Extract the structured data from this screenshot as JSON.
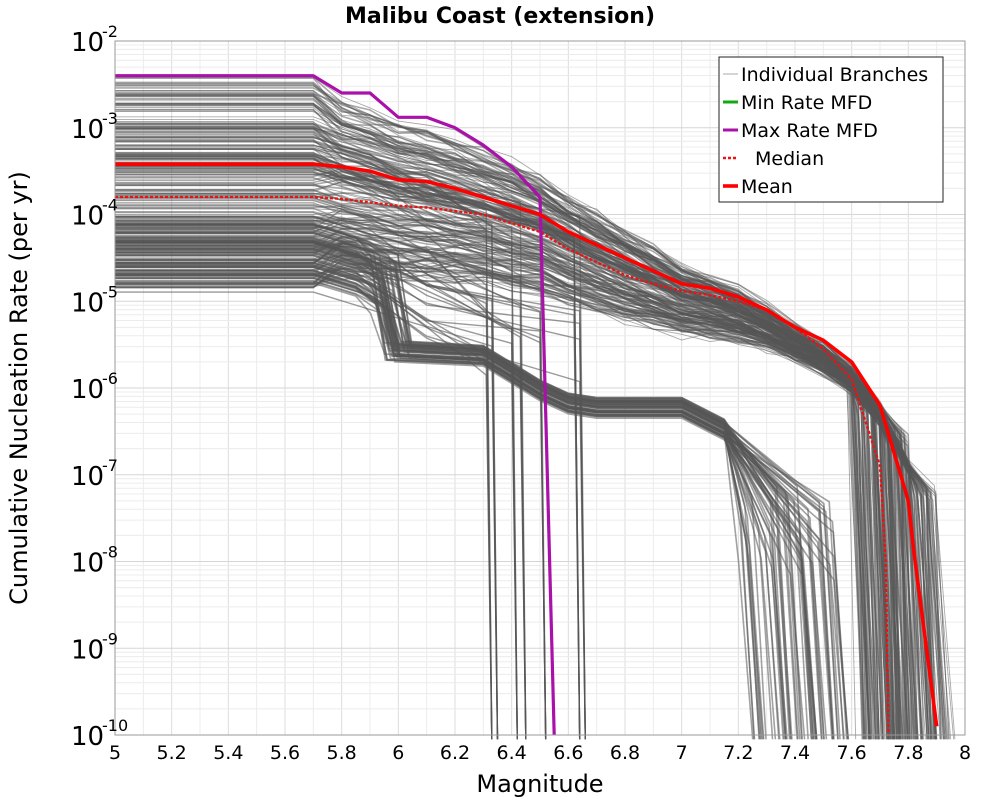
{
  "chart_data": {
    "type": "line",
    "title": "Malibu Coast (extension)",
    "xlabel": "Magnitude",
    "ylabel": "Cumulative Nucleation Rate (per yr)",
    "xlim": [
      5,
      8
    ],
    "ylim_log10": [
      -10,
      -2
    ],
    "y_scale": "log",
    "grid": true,
    "legend_position": "top-right",
    "xticks": [
      "5",
      "5.2",
      "5.4",
      "5.6",
      "5.8",
      "6",
      "6.2",
      "6.4",
      "6.6",
      "6.8",
      "7",
      "7.2",
      "7.4",
      "7.6",
      "7.8",
      "8"
    ],
    "ytick_base": "10",
    "ytick_exponents": [
      "-10",
      "-9",
      "-8",
      "-7",
      "-6",
      "-5",
      "-4",
      "-3",
      "-2"
    ],
    "colors": {
      "branches": "#555555",
      "min_rate": "#11aa11",
      "max_rate": "#aa10aa",
      "median": "#ee1111",
      "mean": "#ff0000"
    },
    "legend": [
      {
        "label": "Individual Branches",
        "style": "thin-gray"
      },
      {
        "label": "Min Rate MFD",
        "style": "green"
      },
      {
        "label": "Max Rate MFD",
        "style": "purple"
      },
      {
        "label": "Median",
        "style": "red-dotted"
      },
      {
        "label": "Mean",
        "style": "red-thick"
      }
    ],
    "series": [
      {
        "name": "Max Rate MFD",
        "x": [
          5.0,
          5.7,
          5.8,
          5.9,
          6.0,
          6.1,
          6.2,
          6.3,
          6.4,
          6.5,
          6.55
        ],
        "log10_y": [
          -2.4,
          -2.4,
          -2.6,
          -2.6,
          -2.88,
          -2.88,
          -3.0,
          -3.2,
          -3.45,
          -3.8,
          -10.0
        ]
      },
      {
        "name": "Mean",
        "x": [
          5.0,
          5.7,
          5.8,
          5.9,
          6.0,
          6.1,
          6.2,
          6.3,
          6.4,
          6.5,
          6.6,
          6.7,
          6.8,
          6.9,
          7.0,
          7.1,
          7.2,
          7.3,
          7.4,
          7.5,
          7.6,
          7.7,
          7.8,
          7.82,
          7.9
        ],
        "log10_y": [
          -3.42,
          -3.42,
          -3.45,
          -3.5,
          -3.6,
          -3.62,
          -3.7,
          -3.8,
          -3.9,
          -4.0,
          -4.2,
          -4.35,
          -4.5,
          -4.65,
          -4.8,
          -4.85,
          -4.95,
          -5.1,
          -5.3,
          -5.45,
          -5.7,
          -6.2,
          -7.3,
          -7.9,
          -9.9
        ]
      },
      {
        "name": "Median",
        "x": [
          5.0,
          5.7,
          5.8,
          5.9,
          6.0,
          6.1,
          6.2,
          6.3,
          6.4,
          6.5,
          6.6,
          6.7,
          6.8,
          6.9,
          7.0,
          7.1,
          7.2,
          7.3,
          7.4,
          7.5,
          7.6,
          7.7,
          7.72,
          7.73
        ],
        "log10_y": [
          -3.8,
          -3.8,
          -3.82,
          -3.86,
          -3.9,
          -3.92,
          -3.96,
          -4.0,
          -4.1,
          -4.2,
          -4.4,
          -4.55,
          -4.7,
          -4.8,
          -4.88,
          -4.93,
          -5.0,
          -5.1,
          -5.3,
          -5.55,
          -5.9,
          -6.9,
          -8.0,
          -10.0
        ]
      }
    ]
  }
}
